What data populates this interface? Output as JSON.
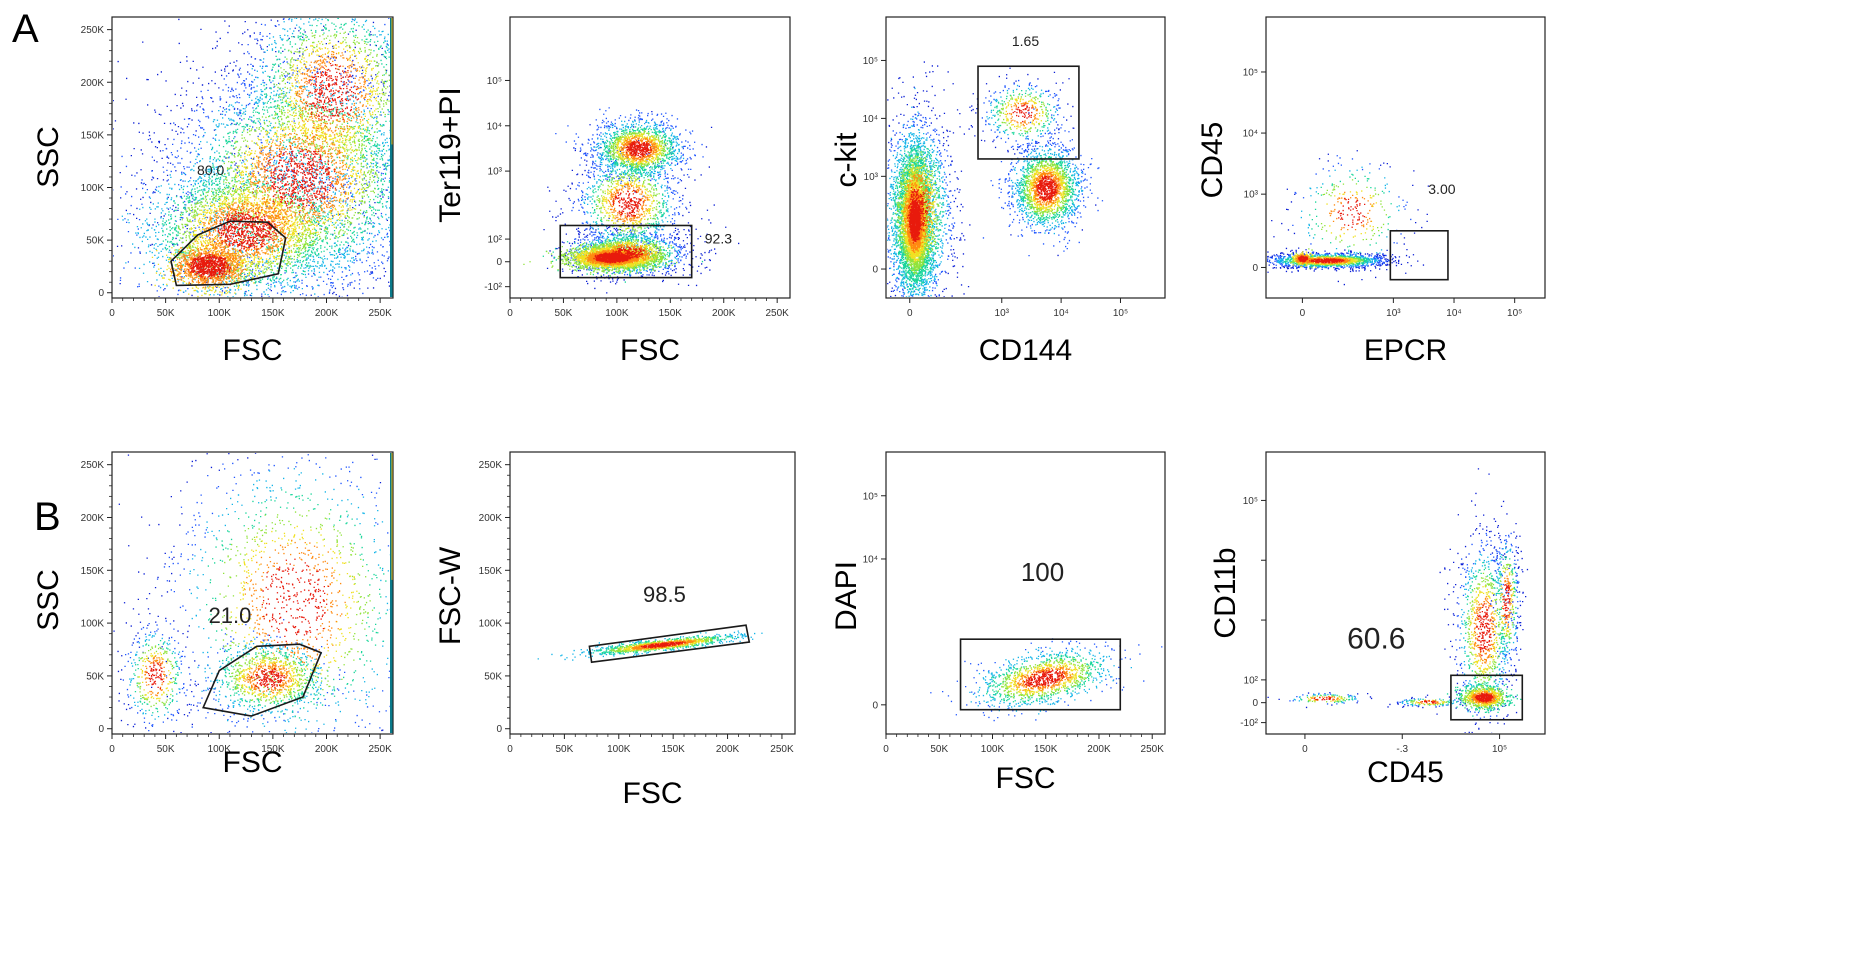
{
  "figure": {
    "rows": [
      {
        "letter": "A"
      },
      {
        "letter": "B"
      }
    ]
  },
  "palette": {
    "density": [
      "#0b1fd6",
      "#1f56ff",
      "#12b4e8",
      "#19d69a",
      "#8fe33a",
      "#f0e020",
      "#ff8a10",
      "#e81a0c"
    ],
    "edge_strip": [
      "#0a7a8a",
      "#e8c020"
    ],
    "axis": "#222222",
    "gate": "#1a1a1a"
  },
  "chart_data": [
    {
      "id": "A1",
      "type": "scatter",
      "subtype": "flow-cytometry-density",
      "xlabel": "FSC",
      "ylabel": "SSC",
      "x_scale": "linear",
      "y_scale": "linear",
      "xlim": [
        0,
        262000
      ],
      "ylim": [
        -5000,
        262000
      ],
      "x_ticks": [
        {
          "v": 0,
          "t": "0"
        },
        {
          "v": 50000,
          "t": "50K"
        },
        {
          "v": 100000,
          "t": "100K"
        },
        {
          "v": 150000,
          "t": "150K"
        },
        {
          "v": 200000,
          "t": "200K"
        },
        {
          "v": 250000,
          "t": "250K"
        }
      ],
      "y_ticks": [
        {
          "v": 0,
          "t": "0"
        },
        {
          "v": 50000,
          "t": "50K"
        },
        {
          "v": 100000,
          "t": "100K"
        },
        {
          "v": 150000,
          "t": "150K"
        },
        {
          "v": 200000,
          "t": "200K"
        },
        {
          "v": 250000,
          "t": "250K"
        }
      ],
      "gate": {
        "shape": "polygon",
        "points": [
          [
            60000,
            7000
          ],
          [
            55000,
            30000
          ],
          [
            80000,
            55000
          ],
          [
            110000,
            68000
          ],
          [
            145000,
            67000
          ],
          [
            162000,
            52000
          ],
          [
            155000,
            18000
          ],
          [
            110000,
            8000
          ]
        ]
      },
      "gate_label": {
        "text": "80.0",
        "x": 92000,
        "y": 112000
      },
      "populations": [
        {
          "n": 1500,
          "mx": 90000,
          "my": 26000,
          "sx": 17000,
          "sy": 10000,
          "min": 0.7
        },
        {
          "n": 3500,
          "mx": 125000,
          "my": 60000,
          "sx": 45000,
          "sy": 30000,
          "min": 0.2
        },
        {
          "n": 4500,
          "mx": 175000,
          "my": 110000,
          "sx": 60000,
          "sy": 55000,
          "min": 0.0
        },
        {
          "n": 2500,
          "mx": 205000,
          "my": 190000,
          "sx": 45000,
          "sy": 50000,
          "min": 0.0
        }
      ],
      "edge_strip": true
    },
    {
      "id": "A2",
      "type": "scatter",
      "subtype": "flow-cytometry-density",
      "xlabel": "FSC",
      "ylabel": "Ter119+PI",
      "x_scale": "linear",
      "y_scale": "biex",
      "xlim": [
        0,
        262000
      ],
      "ylim": [
        -0.8,
        5.4
      ],
      "x_ticks": [
        {
          "v": 0,
          "t": "0"
        },
        {
          "v": 50000,
          "t": "50K"
        },
        {
          "v": 100000,
          "t": "100K"
        },
        {
          "v": 150000,
          "t": "150K"
        },
        {
          "v": 200000,
          "t": "200K"
        },
        {
          "v": 250000,
          "t": "250K"
        }
      ],
      "y_ticks": [
        {
          "v": -0.55,
          "t": "-10²"
        },
        {
          "v": 0,
          "t": "0"
        },
        {
          "v": 0.5,
          "t": "10²"
        },
        {
          "v": 2,
          "t": "10³"
        },
        {
          "v": 3,
          "t": "10⁴"
        },
        {
          "v": 4,
          "t": "10⁵"
        }
      ],
      "gate": {
        "shape": "rect",
        "x0": 47000,
        "x1": 170000,
        "y0": -0.35,
        "y1": 0.8
      },
      "gate_label": {
        "text": "92.3",
        "x": 195000,
        "y": 0.4
      },
      "populations": [
        {
          "n": 3000,
          "mx": 95000,
          "my": 0.1,
          "sx": 20000,
          "sy": 0.13,
          "min": 0.5
        },
        {
          "n": 1500,
          "mx": 110000,
          "my": 0.2,
          "sx": 28000,
          "sy": 0.25,
          "min": 0.0
        },
        {
          "n": 1800,
          "mx": 120000,
          "my": 2.5,
          "sx": 20000,
          "sy": 0.3,
          "min": 0.15
        },
        {
          "n": 1300,
          "mx": 110000,
          "my": 1.3,
          "sx": 25000,
          "sy": 0.55,
          "min": 0.0
        }
      ]
    },
    {
      "id": "A3",
      "type": "scatter",
      "subtype": "flow-cytometry-density",
      "xlabel": "CD144",
      "ylabel": "c-kit",
      "x_scale": "biex",
      "y_scale": "biex",
      "xlim": [
        -0.4,
        4.3
      ],
      "ylim": [
        -0.5,
        4.35
      ],
      "x_ticks": [
        {
          "v": 0,
          "t": "0"
        },
        {
          "v": 1.55,
          "t": "10³"
        },
        {
          "v": 2.55,
          "t": "10⁴"
        },
        {
          "v": 3.55,
          "t": "10⁵"
        }
      ],
      "y_ticks": [
        {
          "v": 0,
          "t": "0"
        },
        {
          "v": 1.6,
          "t": "10³"
        },
        {
          "v": 2.6,
          "t": "10⁴"
        },
        {
          "v": 3.6,
          "t": "10⁵"
        }
      ],
      "gate": {
        "shape": "rect",
        "x0": 1.15,
        "x1": 2.85,
        "y0": 1.9,
        "y1": 3.5
      },
      "gate_label": {
        "text": "1.65",
        "x": 1.95,
        "y": 3.85
      },
      "populations": [
        {
          "n": 5000,
          "mx": 0.08,
          "my": 0.85,
          "sx": 0.14,
          "sy": 0.55,
          "min": 0.3
        },
        {
          "n": 2000,
          "mx": 0.12,
          "my": 1.0,
          "sx": 0.3,
          "sy": 0.85,
          "min": 0.0
        },
        {
          "n": 2200,
          "mx": 2.3,
          "my": 1.4,
          "sx": 0.28,
          "sy": 0.35,
          "min": 0.15
        },
        {
          "n": 500,
          "mx": 1.9,
          "my": 2.7,
          "sx": 0.35,
          "sy": 0.28,
          "min": 0.0
        }
      ]
    },
    {
      "id": "A4",
      "type": "scatter",
      "subtype": "flow-cytometry-density",
      "xlabel": "EPCR",
      "ylabel": "CD45",
      "x_scale": "biex",
      "y_scale": "biex",
      "xlim": [
        -0.6,
        4.0
      ],
      "ylim": [
        -0.5,
        4.1
      ],
      "x_ticks": [
        {
          "v": 0,
          "t": "0"
        },
        {
          "v": 1.5,
          "t": "10³"
        },
        {
          "v": 2.5,
          "t": "10⁴"
        },
        {
          "v": 3.5,
          "t": "10⁵"
        }
      ],
      "y_ticks": [
        {
          "v": 0,
          "t": "0"
        },
        {
          "v": 1.2,
          "t": "10³"
        },
        {
          "v": 2.2,
          "t": "10⁴"
        },
        {
          "v": 3.2,
          "t": "10⁵"
        }
      ],
      "gate": {
        "shape": "rect",
        "x0": 1.45,
        "x1": 2.4,
        "y0": -0.2,
        "y1": 0.6
      },
      "gate_label": {
        "text": "3.00",
        "x": 2.3,
        "y": 1.2
      },
      "populations": [
        {
          "n": 1600,
          "mx": 0.4,
          "my": 0.12,
          "sx": 0.5,
          "sy": 0.06,
          "min": 0.0
        },
        {
          "n": 300,
          "mx": 0.0,
          "my": 0.15,
          "sx": 0.08,
          "sy": 0.05,
          "min": 0.6
        },
        {
          "n": 350,
          "mx": 0.8,
          "my": 0.9,
          "sx": 0.5,
          "sy": 0.45,
          "min": 0.0
        }
      ]
    },
    {
      "id": "B1",
      "type": "scatter",
      "subtype": "flow-cytometry-density",
      "xlabel": "FSC",
      "ylabel": "SSC",
      "x_scale": "linear",
      "y_scale": "linear",
      "xlim": [
        0,
        262000
      ],
      "ylim": [
        -5000,
        262000
      ],
      "x_ticks": [
        {
          "v": 0,
          "t": "0"
        },
        {
          "v": 50000,
          "t": "50K"
        },
        {
          "v": 100000,
          "t": "100K"
        },
        {
          "v": 150000,
          "t": "150K"
        },
        {
          "v": 200000,
          "t": "200K"
        },
        {
          "v": 250000,
          "t": "250K"
        }
      ],
      "y_ticks": [
        {
          "v": 0,
          "t": "0"
        },
        {
          "v": 50000,
          "t": "50K"
        },
        {
          "v": 100000,
          "t": "100K"
        },
        {
          "v": 150000,
          "t": "150K"
        },
        {
          "v": 200000,
          "t": "200K"
        },
        {
          "v": 250000,
          "t": "250K"
        }
      ],
      "gate": {
        "shape": "polygon",
        "points": [
          [
            85000,
            20000
          ],
          [
            100000,
            55000
          ],
          [
            135000,
            78000
          ],
          [
            175000,
            80000
          ],
          [
            195000,
            72000
          ],
          [
            178000,
            30000
          ],
          [
            130000,
            12000
          ]
        ]
      },
      "gate_label": {
        "text": "21.0",
        "x": 110000,
        "y": 100000
      },
      "populations": [
        {
          "n": 1100,
          "mx": 145000,
          "my": 48000,
          "sx": 25000,
          "sy": 16000,
          "min": 0.2
        },
        {
          "n": 1800,
          "mx": 170000,
          "my": 120000,
          "sx": 60000,
          "sy": 75000,
          "min": 0.0
        },
        {
          "n": 500,
          "mx": 40000,
          "my": 50000,
          "sx": 15000,
          "sy": 25000,
          "min": 0.0
        }
      ],
      "edge_strip": true
    },
    {
      "id": "B2",
      "type": "scatter",
      "subtype": "flow-cytometry-density",
      "xlabel": "FSC",
      "ylabel": "FSC-W",
      "x_scale": "linear",
      "y_scale": "linear",
      "xlim": [
        0,
        262000
      ],
      "ylim": [
        -5000,
        262000
      ],
      "x_ticks": [
        {
          "v": 0,
          "t": "0"
        },
        {
          "v": 50000,
          "t": "50K"
        },
        {
          "v": 100000,
          "t": "100K"
        },
        {
          "v": 150000,
          "t": "150K"
        },
        {
          "v": 200000,
          "t": "200K"
        },
        {
          "v": 250000,
          "t": "250K"
        }
      ],
      "y_ticks": [
        {
          "v": 0,
          "t": "0"
        },
        {
          "v": 50000,
          "t": "50K"
        },
        {
          "v": 100000,
          "t": "100K"
        },
        {
          "v": 150000,
          "t": "150K"
        },
        {
          "v": 200000,
          "t": "200K"
        },
        {
          "v": 250000,
          "t": "250K"
        }
      ],
      "gate": {
        "shape": "polygon",
        "points": [
          [
            75000,
            63000
          ],
          [
            220000,
            82000
          ],
          [
            217000,
            98000
          ],
          [
            73000,
            78000
          ]
        ]
      },
      "gate_label": {
        "text": "98.5",
        "x": 142000,
        "y": 120000
      },
      "populations": [
        {
          "n": 1300,
          "mx": 140000,
          "my": 80000,
          "sx": 30000,
          "sy": 2500,
          "tilt": 0.11,
          "min": 0.3
        }
      ]
    },
    {
      "id": "B3",
      "type": "scatter",
      "subtype": "flow-cytometry-density",
      "xlabel": "FSC",
      "ylabel": "DAPI",
      "x_scale": "linear",
      "y_scale": "biex",
      "xlim": [
        0,
        262000
      ],
      "ylim": [
        -0.6,
        5.2
      ],
      "x_ticks": [
        {
          "v": 0,
          "t": "0"
        },
        {
          "v": 50000,
          "t": "50K"
        },
        {
          "v": 100000,
          "t": "100K"
        },
        {
          "v": 150000,
          "t": "150K"
        },
        {
          "v": 200000,
          "t": "200K"
        },
        {
          "v": 250000,
          "t": "250K"
        }
      ],
      "y_ticks": [
        {
          "v": 0,
          "t": "0"
        },
        {
          "v": 3,
          "t": "10⁴"
        },
        {
          "v": 4.3,
          "t": "10⁵"
        }
      ],
      "gate": {
        "shape": "rect",
        "x0": 70000,
        "x1": 220000,
        "y0": -0.1,
        "y1": 1.35
      },
      "gate_label": {
        "text": "100",
        "x": 147000,
        "y": 2.55
      },
      "populations": [
        {
          "n": 1500,
          "mx": 148000,
          "my": 0.55,
          "sx": 30000,
          "sy": 0.25,
          "tilt": 4e-06,
          "min": 0.2
        }
      ]
    },
    {
      "id": "B4",
      "type": "scatter",
      "subtype": "flow-cytometry-density",
      "xlabel": "CD45",
      "ylabel": "CD11b",
      "x_scale": "biex",
      "y_scale": "biex",
      "xlim": [
        -0.6,
        3.7
      ],
      "ylim": [
        -0.55,
        4.4
      ],
      "x_ticks": [
        {
          "v": 0,
          "t": "0"
        },
        {
          "v": 1.5,
          "t": "-.3"
        },
        {
          "v": 3.0,
          "t": "10⁵"
        }
      ],
      "y_ticks": [
        {
          "v": -0.35,
          "t": "-10²"
        },
        {
          "v": 0,
          "t": "0"
        },
        {
          "v": 0.4,
          "t": "10²"
        },
        {
          "v": 1.45,
          "t": ""
        },
        {
          "v": 2.5,
          "t": ""
        },
        {
          "v": 3.55,
          "t": "10⁵"
        }
      ],
      "gate": {
        "shape": "rect",
        "x0": 2.25,
        "x1": 3.35,
        "y0": -0.3,
        "y1": 0.48
      },
      "gate_label": {
        "text": "60.6",
        "x": 1.1,
        "y": 0.95
      },
      "populations": [
        {
          "n": 900,
          "mx": 2.75,
          "my": 0.1,
          "sx": 0.18,
          "sy": 0.1,
          "min": 0.4
        },
        {
          "n": 1100,
          "mx": 2.75,
          "my": 1.3,
          "sx": 0.22,
          "sy": 0.8,
          "min": 0.0
        },
        {
          "n": 400,
          "mx": 3.1,
          "my": 1.8,
          "sx": 0.1,
          "sy": 0.6,
          "min": 0.0
        },
        {
          "n": 150,
          "mx": 0.3,
          "my": 0.08,
          "sx": 0.3,
          "sy": 0.05,
          "min": 0.0
        },
        {
          "n": 150,
          "mx": 1.9,
          "my": 0.02,
          "sx": 0.25,
          "sy": 0.04,
          "min": 0.0
        }
      ]
    }
  ]
}
